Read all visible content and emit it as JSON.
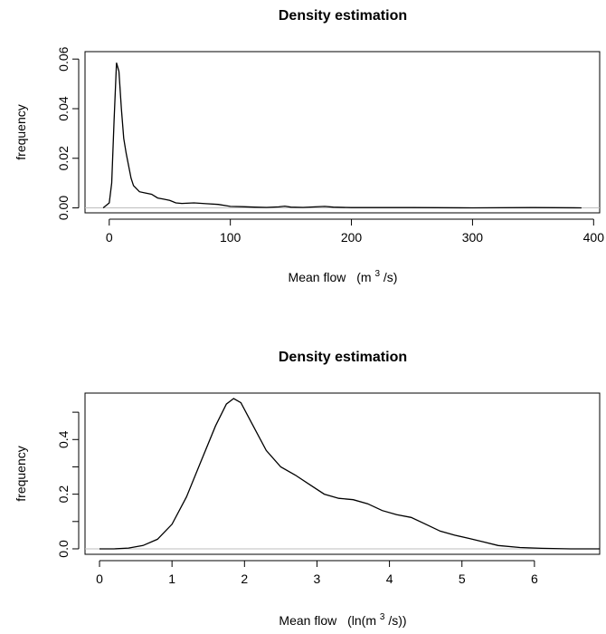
{
  "chart_data": [
    {
      "type": "line",
      "title": "Density estimation",
      "xlabel": "Mean flow",
      "xlabel_unit": {
        "pre": "(m",
        "sup": "3",
        "post": "/s)"
      },
      "ylabel": "frequency",
      "xlim": [
        -20,
        405
      ],
      "ylim": [
        -0.002,
        0.063
      ],
      "x_ticks": [
        0,
        100,
        200,
        300,
        400
      ],
      "y_ticks": [
        0.0,
        0.02,
        0.04,
        0.06
      ],
      "y_tick_labels": [
        "0.00",
        "0.02",
        "0.04",
        "0.06"
      ],
      "baseline": 0,
      "series": [
        {
          "x": [
            -5,
            0,
            2,
            4,
            6,
            8,
            10,
            12,
            14,
            16,
            18,
            20,
            25,
            30,
            35,
            40,
            45,
            50,
            55,
            60,
            70,
            80,
            90,
            100,
            110,
            120,
            130,
            140,
            145,
            150,
            160,
            170,
            178,
            185,
            200,
            250,
            300,
            350,
            390
          ],
          "y": [
            0.0,
            0.002,
            0.01,
            0.035,
            0.0585,
            0.055,
            0.04,
            0.028,
            0.022,
            0.017,
            0.012,
            0.009,
            0.0065,
            0.006,
            0.0055,
            0.004,
            0.0035,
            0.003,
            0.002,
            0.0018,
            0.002,
            0.0017,
            0.0014,
            0.0006,
            0.0005,
            0.0003,
            0.0002,
            0.0004,
            0.0007,
            0.0003,
            0.0002,
            0.0004,
            0.0006,
            0.0003,
            0.0001,
            0.0001,
            0.0,
            0.0001,
            0.0
          ]
        }
      ]
    },
    {
      "type": "line",
      "title": "Density estimation",
      "xlabel": "Mean flow",
      "xlabel_unit": {
        "pre": "(ln(m",
        "sup": "3",
        "post": "/s))"
      },
      "ylabel": "frequency",
      "xlim": [
        -0.2,
        6.9
      ],
      "ylim": [
        -0.02,
        0.57
      ],
      "x_ticks": [
        0,
        1,
        2,
        3,
        4,
        5,
        6
      ],
      "y_ticks": [
        0.0,
        0.2,
        0.4
      ],
      "y_tick_labels": [
        "0.0",
        "0.2",
        "0.4"
      ],
      "y_minor_ticks": [
        0.1,
        0.3,
        0.5
      ],
      "baseline": 0,
      "series": [
        {
          "x": [
            0.0,
            0.2,
            0.4,
            0.6,
            0.8,
            1.0,
            1.2,
            1.4,
            1.6,
            1.75,
            1.85,
            1.95,
            2.1,
            2.3,
            2.5,
            2.7,
            2.9,
            3.1,
            3.3,
            3.5,
            3.7,
            3.9,
            4.1,
            4.3,
            4.5,
            4.7,
            4.9,
            5.1,
            5.3,
            5.5,
            5.8,
            6.1,
            6.5,
            6.9
          ],
          "y": [
            0.0,
            0.0,
            0.003,
            0.012,
            0.035,
            0.09,
            0.19,
            0.32,
            0.45,
            0.53,
            0.55,
            0.535,
            0.46,
            0.36,
            0.3,
            0.27,
            0.235,
            0.2,
            0.185,
            0.18,
            0.165,
            0.14,
            0.125,
            0.115,
            0.09,
            0.065,
            0.05,
            0.038,
            0.025,
            0.012,
            0.005,
            0.002,
            0.0,
            0.0
          ]
        }
      ]
    }
  ]
}
